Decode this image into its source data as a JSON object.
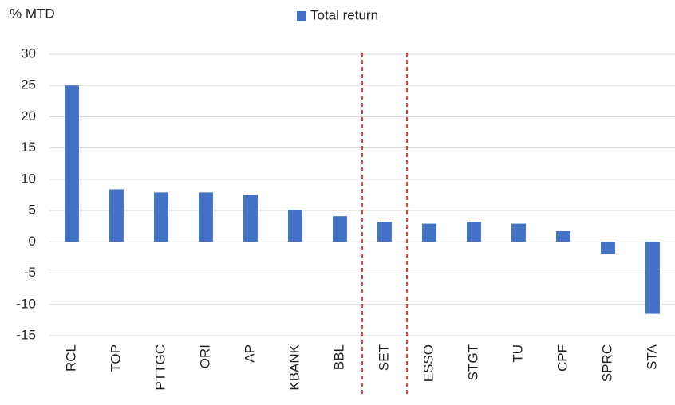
{
  "chart_data": {
    "type": "bar",
    "y_label": "% MTD",
    "categories": [
      "RCL",
      "TOP",
      "PTTGC",
      "ORI",
      "AP",
      "KBANK",
      "BBL",
      "SET",
      "ESSO",
      "STGT",
      "TU",
      "CPF",
      "SPRC",
      "STA"
    ],
    "series": [
      {
        "name": "Total return",
        "color": "#4472c4",
        "values": [
          25.0,
          8.4,
          7.9,
          7.9,
          7.5,
          5.1,
          4.1,
          3.2,
          2.9,
          3.2,
          2.9,
          1.7,
          -1.9,
          -11.5
        ]
      }
    ],
    "ylim": [
      -15,
      30
    ],
    "yticks": [
      -15,
      -10,
      -5,
      0,
      5,
      10,
      15,
      20,
      25,
      30
    ],
    "grid": true
  }
}
